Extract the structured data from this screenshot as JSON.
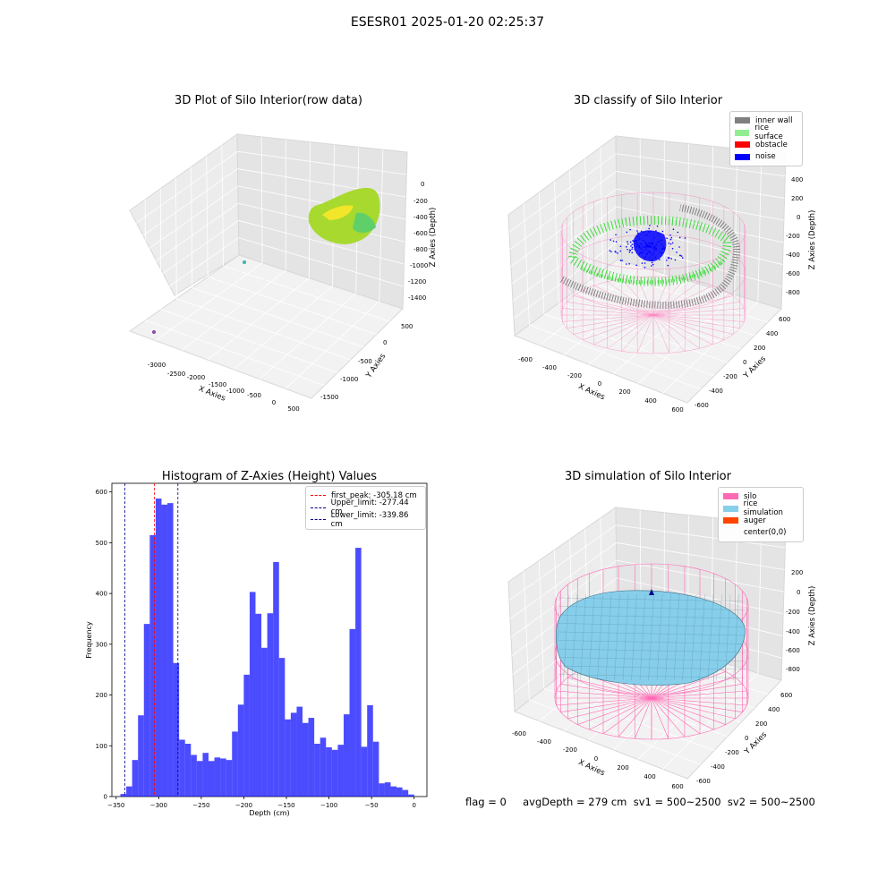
{
  "suptitle": "ESESR01 2025-01-20 02:25:37",
  "status_text": "flag = 0     avgDepth = 279 cm  sv1 = 500~2500  sv2 = 500~2500",
  "panels": {
    "raw": {
      "title": "3D Plot of Silo Interior(row data)",
      "x_label": "X Axies",
      "y_label": "Y Axies",
      "z_label": "Z Axies (Depth)",
      "x_ticks": [
        "-3000",
        "-2500",
        "-2000",
        "-1500",
        "-1000",
        "-500",
        "0",
        "500"
      ],
      "y_ticks": [
        "500",
        "0",
        "-500",
        "-1000",
        "-1500"
      ],
      "z_ticks": [
        "0",
        "-200",
        "-400",
        "-600",
        "-800",
        "-1000",
        "-1200",
        "-1400"
      ]
    },
    "classify": {
      "title": "3D classify of Silo Interior",
      "x_label": "X Axies",
      "y_label": "Y Axies",
      "z_label": "Z Axies (Depth)",
      "x_ticks": [
        "-600",
        "-400",
        "-200",
        "0",
        "200",
        "400",
        "600"
      ],
      "y_ticks": [
        "600",
        "400",
        "200",
        "0",
        "-200",
        "-400",
        "-600"
      ],
      "z_ticks": [
        "400",
        "200",
        "0",
        "-200",
        "-400",
        "-600",
        "-800"
      ],
      "legend": [
        {
          "label": "inner wall",
          "color": "#808080"
        },
        {
          "label": "rice surface",
          "color": "#90ee90"
        },
        {
          "label": "obstacle",
          "color": "#ff0000"
        },
        {
          "label": "noise",
          "color": "#0000ff"
        }
      ]
    },
    "simulation": {
      "title": "3D simulation of Silo Interior",
      "x_label": "X Axies",
      "y_label": "Y Axies",
      "z_label": "Z Axies (Depth)",
      "x_ticks": [
        "-600",
        "-400",
        "-200",
        "0",
        "200",
        "400",
        "600"
      ],
      "y_ticks": [
        "600",
        "400",
        "200",
        "0",
        "-200",
        "-400",
        "-600"
      ],
      "z_ticks": [
        "200",
        "0",
        "-200",
        "-400",
        "-600",
        "-800"
      ],
      "legend": [
        {
          "label": "silo",
          "color": "#ff69b4"
        },
        {
          "label": "rice simulation",
          "color": "#87ceeb"
        },
        {
          "label": "auger",
          "color": "#ff4500"
        },
        {
          "label": "center(0,0)",
          "color": ""
        }
      ]
    }
  },
  "chart_data": {
    "type": "bar",
    "title": "Histogram of Z-Axies (Height) Values",
    "xlabel": "Depth (cm)",
    "ylabel": "Frequency",
    "xlim": [
      -355,
      15
    ],
    "ylim": [
      0,
      617
    ],
    "x_ticks": [
      -350,
      -300,
      -250,
      -200,
      -150,
      -100,
      -50,
      0
    ],
    "y_ticks": [
      0,
      100,
      200,
      300,
      400,
      500,
      600
    ],
    "bar_color": "#0000ff",
    "bin_width": 6.9,
    "bin_start": -345.0,
    "values": [
      5,
      20,
      72,
      160,
      340,
      515,
      587,
      575,
      578,
      263,
      112,
      104,
      82,
      70,
      86,
      70,
      77,
      75,
      72,
      128,
      181,
      240,
      403,
      360,
      293,
      361,
      462,
      273,
      152,
      165,
      177,
      145,
      155,
      104,
      116,
      97,
      92,
      102,
      162,
      330,
      490,
      98,
      180,
      108,
      26,
      28,
      20,
      18,
      13,
      4
    ],
    "vlines": [
      {
        "label": "first_peak: -305.18 cm",
        "x": -305.18,
        "color": "#ff0000"
      },
      {
        "label": "Upper_limit: -277.44 cm",
        "x": -277.44,
        "color": "#00008b"
      },
      {
        "label": "Lower_limit: -339.86 cm",
        "x": -339.86,
        "color": "#00008b"
      }
    ],
    "legend_position": "top-right"
  }
}
